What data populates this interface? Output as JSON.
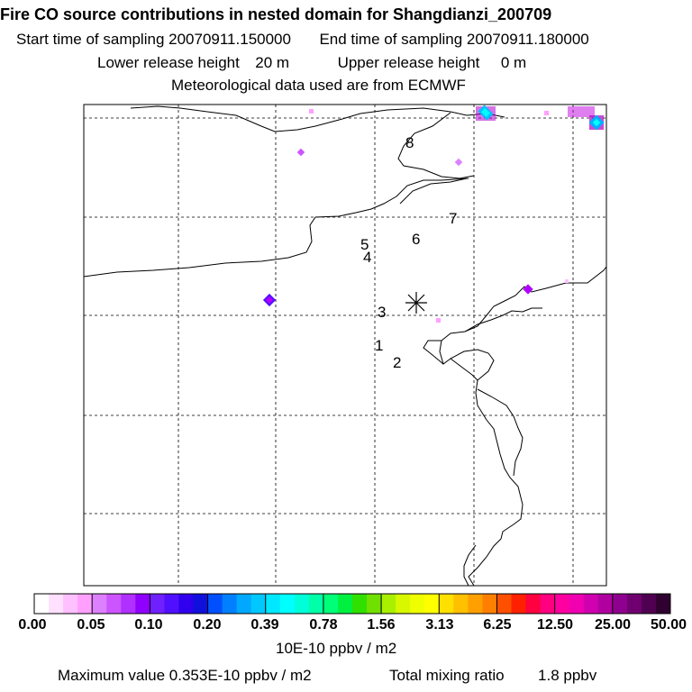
{
  "title": "Fire CO source contributions in nested domain for Shangdianzi_200709",
  "sampling": {
    "start_label": "Start time of sampling",
    "start_value": "20070911.150000",
    "end_label": "End time of sampling",
    "end_value": "20070911.180000"
  },
  "release": {
    "lower_label": "Lower release height",
    "lower_value": "20 m",
    "upper_label": "Upper release height",
    "upper_value": "0 m"
  },
  "met_note": "Meteorological data used are from ECMWF",
  "map": {
    "station_marker": "asterisk-icon",
    "trajectory_labels": [
      "1",
      "2",
      "3",
      "4",
      "5",
      "6",
      "7",
      "8"
    ]
  },
  "colorbar": {
    "ticks": [
      "0.00",
      "0.05",
      "0.10",
      "0.20",
      "0.39",
      "0.78",
      "1.56",
      "3.13",
      "6.25",
      "12.50",
      "25.00",
      "50.00"
    ],
    "colors": [
      "#ffffff",
      "#ffe0ff",
      "#ffc0ff",
      "#ffa0ff",
      "#dd80ff",
      "#cc55ff",
      "#b030ff",
      "#9000ff",
      "#7020ff",
      "#5010ff",
      "#3000ee",
      "#1010dd",
      "#0050ff",
      "#0080ff",
      "#00a8ff",
      "#00c8ff",
      "#00e8ff",
      "#00ffff",
      "#00ffd8",
      "#00ffa8",
      "#00ff78",
      "#00f040",
      "#30e000",
      "#70e000",
      "#a8f000",
      "#d8f800",
      "#f0ff00",
      "#ffff00",
      "#ffe000",
      "#ffc000",
      "#ffa000",
      "#ff8000",
      "#ff5000",
      "#ff2000",
      "#ff0040",
      "#ff0080",
      "#ff00a0",
      "#f000b0",
      "#d000b0",
      "#b000a0",
      "#900090",
      "#700070",
      "#500050",
      "#300030"
    ],
    "units": "10E-10 ppbv / m2"
  },
  "footer": {
    "max_label": "Maximum value",
    "max_value": "0.353E-10 ppbv / m2",
    "total_label": "Total mixing ratio",
    "total_value": "1.8 ppbv"
  }
}
